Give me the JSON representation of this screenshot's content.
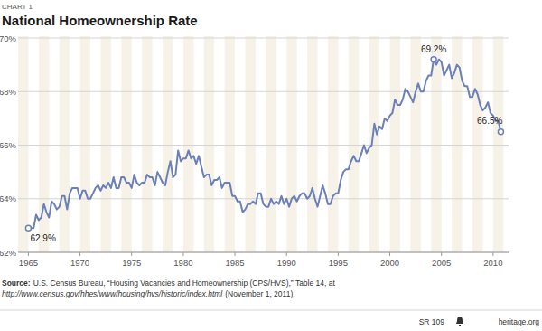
{
  "chart_data": {
    "type": "line",
    "chart_label": "CHART 1",
    "title": "National Homeownership Rate",
    "color": "#6b80b8",
    "grid": true,
    "xlim": [
      1964.0,
      2011.5
    ],
    "xticks": [
      1965,
      1970,
      1975,
      1980,
      1985,
      1990,
      1995,
      2000,
      2005,
      2010
    ],
    "ylim": [
      62,
      70
    ],
    "yticks": [
      {
        "value": 62,
        "label": "62%"
      },
      {
        "value": 64,
        "label": "64%"
      },
      {
        "value": 66,
        "label": "66%"
      },
      {
        "value": 68,
        "label": "68%"
      },
      {
        "value": 70,
        "label": "70%"
      }
    ],
    "x": [
      1965,
      1965.25,
      1965.5,
      1965.75,
      1966,
      1966.25,
      1966.5,
      1966.75,
      1967,
      1967.25,
      1967.5,
      1967.75,
      1968,
      1968.25,
      1968.5,
      1968.75,
      1969,
      1969.25,
      1969.5,
      1969.75,
      1970,
      1970.25,
      1970.5,
      1970.75,
      1971,
      1971.25,
      1971.5,
      1971.75,
      1972,
      1972.25,
      1972.5,
      1972.75,
      1973,
      1973.25,
      1973.5,
      1973.75,
      1974,
      1974.25,
      1974.5,
      1974.75,
      1975,
      1975.25,
      1975.5,
      1975.75,
      1976,
      1976.25,
      1976.5,
      1976.75,
      1977,
      1977.25,
      1977.5,
      1977.75,
      1978,
      1978.25,
      1978.5,
      1978.75,
      1979,
      1979.25,
      1979.5,
      1979.75,
      1980,
      1980.25,
      1980.5,
      1980.75,
      1981,
      1981.25,
      1981.5,
      1981.75,
      1982,
      1982.25,
      1982.5,
      1982.75,
      1983,
      1983.25,
      1983.5,
      1983.75,
      1984,
      1984.25,
      1984.5,
      1984.75,
      1985,
      1985.25,
      1985.5,
      1985.75,
      1986,
      1986.25,
      1986.5,
      1986.75,
      1987,
      1987.25,
      1987.5,
      1987.75,
      1988,
      1988.25,
      1988.5,
      1988.75,
      1989,
      1989.25,
      1989.5,
      1989.75,
      1990,
      1990.25,
      1990.5,
      1990.75,
      1991,
      1991.25,
      1991.5,
      1991.75,
      1992,
      1992.25,
      1992.5,
      1992.75,
      1993,
      1993.25,
      1993.5,
      1993.75,
      1994,
      1994.25,
      1994.5,
      1994.75,
      1995,
      1995.25,
      1995.5,
      1995.75,
      1996,
      1996.25,
      1996.5,
      1996.75,
      1997,
      1997.25,
      1997.5,
      1997.75,
      1998,
      1998.25,
      1998.5,
      1998.75,
      1999,
      1999.25,
      1999.5,
      1999.75,
      2000,
      2000.25,
      2000.5,
      2000.75,
      2001,
      2001.25,
      2001.5,
      2001.75,
      2002,
      2002.25,
      2002.5,
      2002.75,
      2003,
      2003.25,
      2003.5,
      2003.75,
      2004,
      2004.25,
      2004.5,
      2004.75,
      2005,
      2005.25,
      2005.5,
      2005.75,
      2006,
      2006.25,
      2006.5,
      2006.75,
      2007,
      2007.25,
      2007.5,
      2007.75,
      2008,
      2008.25,
      2008.5,
      2008.75,
      2009,
      2009.25,
      2009.5,
      2009.75,
      2010,
      2010.25,
      2010.5,
      2010.75
    ],
    "values": [
      62.9,
      62.9,
      62.9,
      63.4,
      63.2,
      63.3,
      63.8,
      63.5,
      63.3,
      63.9,
      63.8,
      63.6,
      63.7,
      64.1,
      64.1,
      63.6,
      64.2,
      64.4,
      64.4,
      64.4,
      64.0,
      64.3,
      64.3,
      64.0,
      64.0,
      64.2,
      64.4,
      64.5,
      64.3,
      64.5,
      64.4,
      64.6,
      64.4,
      64.8,
      64.4,
      64.4,
      64.8,
      64.8,
      64.6,
      64.6,
      64.4,
      64.9,
      64.6,
      64.5,
      64.6,
      64.6,
      64.9,
      64.8,
      64.8,
      64.5,
      65.0,
      64.8,
      64.6,
      64.5,
      65.0,
      65.4,
      64.8,
      64.9,
      65.8,
      65.4,
      65.5,
      65.5,
      65.8,
      65.5,
      65.6,
      65.3,
      65.6,
      65.2,
      64.8,
      64.9,
      64.9,
      64.5,
      64.7,
      64.7,
      64.8,
      64.4,
      64.6,
      64.6,
      64.6,
      64.1,
      64.1,
      63.9,
      63.9,
      63.5,
      63.6,
      63.8,
      63.8,
      63.9,
      63.8,
      64.2,
      64.2,
      63.8,
      63.7,
      63.7,
      64.0,
      63.8,
      63.9,
      63.8,
      64.1,
      63.8,
      64.0,
      63.7,
      64.0,
      64.1,
      63.9,
      64.1,
      64.2,
      64.2,
      64.0,
      64.1,
      64.4,
      64.0,
      63.7,
      64.1,
      64.5,
      64.2,
      63.8,
      63.8,
      64.1,
      64.2,
      64.2,
      64.7,
      65.0,
      65.1,
      65.1,
      65.4,
      65.6,
      65.4,
      65.4,
      65.7,
      66.0,
      65.7,
      65.9,
      66.0,
      66.8,
      66.4,
      66.7,
      66.6,
      67.0,
      66.9,
      67.1,
      67.2,
      67.7,
      67.5,
      67.5,
      67.7,
      68.1,
      68.0,
      67.8,
      67.6,
      68.0,
      68.3,
      68.0,
      68.0,
      68.4,
      68.6,
      68.6,
      69.2,
      69.0,
      69.2,
      69.1,
      68.6,
      68.8,
      69.0,
      68.5,
      68.7,
      69.0,
      68.9,
      68.4,
      68.2,
      68.2,
      67.8,
      67.8,
      68.1,
      67.9,
      67.5,
      67.3,
      67.4,
      67.6,
      67.2,
      67.1,
      66.9,
      66.9,
      66.5
    ],
    "annotations": [
      {
        "x": 1965,
        "y": 62.9,
        "label": "62.9%"
      },
      {
        "x": 2004.25,
        "y": 69.2,
        "label": "69.2%"
      },
      {
        "x": 2010.75,
        "y": 66.5,
        "label": "66.5%"
      }
    ],
    "source": {
      "label": "Source:",
      "text": "U.S. Census Bureau, “Housing Vacancies and Homeownership (CPS/HVS),” Table 14, at",
      "url": "http://www.census.gov/hhes/www/housing/hvs/historic/index.html",
      "date": "(November 1, 2011)."
    },
    "report": "SR 109",
    "site": "heritage.org"
  }
}
